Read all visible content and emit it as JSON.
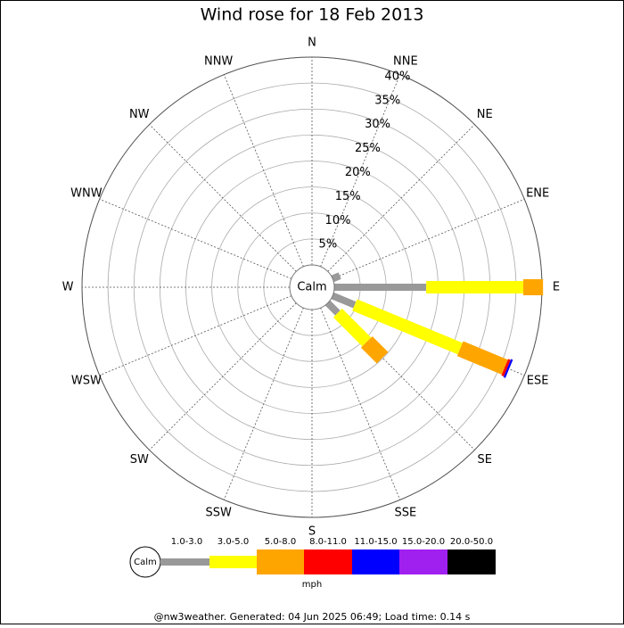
{
  "chart_data": {
    "type": "windrose",
    "title": "Wind rose for 18 Feb 2013",
    "center_label": "Calm",
    "unit_label": "mph",
    "footer": "@nw3weather. Generated: 04 Jun 2025 06:49; Load time: 0.14 s",
    "directions": [
      "N",
      "NNE",
      "NE",
      "ENE",
      "E",
      "ESE",
      "SE",
      "SSE",
      "S",
      "SSW",
      "SW",
      "WSW",
      "W",
      "WNW",
      "NW",
      "NNW"
    ],
    "rlim": [
      0,
      40
    ],
    "rticks": [
      {
        "value": 5,
        "label": "5%"
      },
      {
        "value": 10,
        "label": "10%"
      },
      {
        "value": 15,
        "label": "15%"
      },
      {
        "value": 20,
        "label": "20%"
      },
      {
        "value": 25,
        "label": "25%"
      },
      {
        "value": 30,
        "label": "30%"
      },
      {
        "value": 35,
        "label": "35%"
      },
      {
        "value": 40,
        "label": "40%"
      }
    ],
    "series": [
      {
        "name": "1.0-3.0",
        "color": "#999999",
        "values": [
          0,
          0,
          0,
          1.5,
          17.7,
          4.6,
          2.7,
          0,
          0,
          0,
          0,
          0,
          0,
          0,
          0,
          0
        ]
      },
      {
        "name": "3.0-5.0",
        "color": "#ffff00",
        "values": [
          0,
          0,
          0,
          0,
          18.7,
          22,
          7.9,
          0,
          0,
          0,
          0,
          0,
          0,
          0,
          0,
          0
        ]
      },
      {
        "name": "5.0-8.0",
        "color": "#ffa500",
        "values": [
          0,
          0,
          0,
          0,
          3.8,
          9.3,
          4.3,
          0,
          0,
          0,
          0,
          0,
          0,
          0,
          0,
          0
        ]
      },
      {
        "name": "8.0-11.0",
        "color": "#ff0000",
        "values": [
          0,
          0,
          0,
          0,
          0,
          0.5,
          0,
          0,
          0,
          0,
          0,
          0,
          0,
          0,
          0,
          0
        ]
      },
      {
        "name": "11.0-15.0",
        "color": "#0000ff",
        "values": [
          0,
          0,
          0,
          0,
          0,
          0.4,
          0,
          0,
          0,
          0,
          0,
          0,
          0,
          0,
          0,
          0
        ]
      },
      {
        "name": "15.0-20.0",
        "color": "#a020f0",
        "values": [
          0,
          0,
          0,
          0,
          0,
          0,
          0,
          0,
          0,
          0,
          0,
          0,
          0,
          0,
          0,
          0
        ]
      },
      {
        "name": "20.0-50.0",
        "color": "#000000",
        "values": [
          0,
          0,
          0,
          0,
          0,
          0,
          0,
          0,
          0,
          0,
          0,
          0,
          0,
          0,
          0,
          0
        ]
      }
    ]
  }
}
